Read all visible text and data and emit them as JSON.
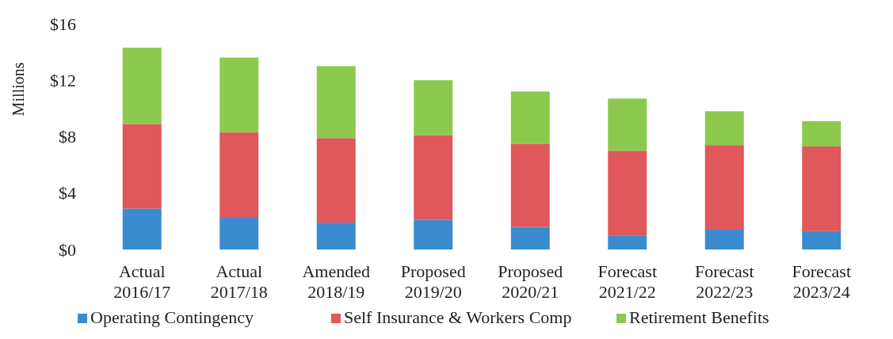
{
  "chart_data": {
    "type": "bar",
    "stacked": true,
    "ylabel": "Millions",
    "categories": [
      "Actual\n2016/17",
      "Actual\n2017/18",
      "Amended\n2018/19",
      "Proposed\n2019/20",
      "Proposed\n2020/21",
      "Forecast\n2021/22",
      "Forecast\n2022/23",
      "Forecast\n2023/24"
    ],
    "series": [
      {
        "name": "Operating Contingency",
        "color": "#3b8bd0",
        "values": [
          2.9,
          2.3,
          1.9,
          2.1,
          1.6,
          1.0,
          1.4,
          1.3
        ]
      },
      {
        "name": "Self Insurance & Workers Comp",
        "color": "#e0575c",
        "values": [
          6.0,
          6.0,
          6.0,
          6.0,
          5.9,
          6.0,
          6.0,
          6.0
        ]
      },
      {
        "name": "Retirement Benefits",
        "color": "#8cc94f",
        "values": [
          5.4,
          5.3,
          5.1,
          3.9,
          3.7,
          3.7,
          2.4,
          1.8
        ]
      }
    ],
    "ylim": [
      0,
      16
    ],
    "yticks": [
      {
        "value": 0,
        "label": "$0"
      },
      {
        "value": 4,
        "label": "$4"
      },
      {
        "value": 8,
        "label": "$8"
      },
      {
        "value": 12,
        "label": "$12"
      },
      {
        "value": 16,
        "label": "$16"
      }
    ],
    "legend": "bottom"
  }
}
